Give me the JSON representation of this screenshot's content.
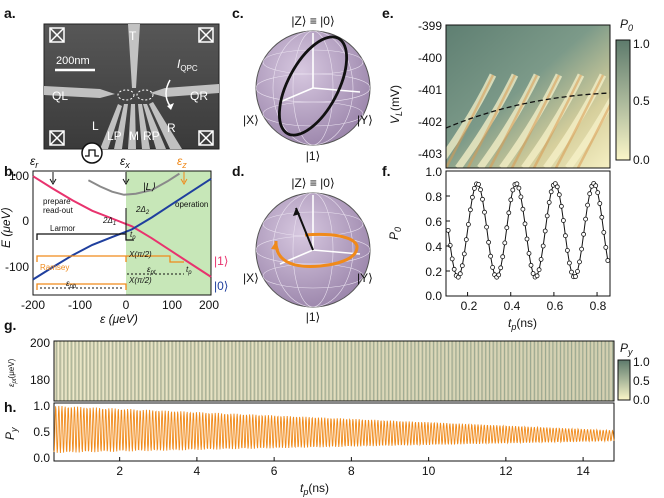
{
  "panels": {
    "a": "a.",
    "b": "b.",
    "c": "c.",
    "d": "d.",
    "e": "e.",
    "f": "f.",
    "g": "g.",
    "h": "h."
  },
  "colors": {
    "red": "#e8336e",
    "blue": "#1f3f9e",
    "orange": "#f08a1a",
    "green": "#c7e7b8",
    "sphere": "#b9a5c7",
    "gray": "#8a8a8a"
  },
  "panel_a": {
    "scale_bar": "200nm",
    "gates": [
      "T",
      "QL",
      "QR",
      "L",
      "LP",
      "M",
      "RP",
      "R"
    ],
    "current_label": "I",
    "current_sub": "QPC"
  },
  "panel_b": {
    "eps_r": "ε",
    "eps_r_sub": "r",
    "eps_x": "ε",
    "eps_x_sub": "x",
    "eps_z": "ε",
    "eps_z_sub": "z",
    "ket_L": "|L⟩",
    "prepare": "prepare",
    "readout": "read-out",
    "operation": "operation",
    "two_delta1": "2Δ",
    "two_delta1_sub": "1",
    "two_delta2": "2Δ",
    "two_delta2_sub": "2",
    "larmor": "Larmor",
    "ramsey": "Ramsey",
    "tp": "t",
    "tp_sub": "p",
    "xpi2_a": "X(π/2)",
    "xpi2_b": "X(π/2)",
    "eps_pt": "ε",
    "eps_pt_sub": "pt",
    "eps_pb": "ε",
    "eps_pb_sub": "pb",
    "ket1": "|1⟩",
    "ket0": "|0⟩",
    "ylabel": "E (μeV)",
    "xlabel": "ε (μeV)"
  },
  "chart_data": [
    {
      "panel": "b",
      "type": "line",
      "xlabel": "ε (μeV)",
      "ylabel": "E (μeV)",
      "xlim": [
        -200,
        250
      ],
      "ylim": [
        -130,
        110
      ],
      "xticks": [
        -200,
        -100,
        0,
        100,
        200
      ],
      "yticks": [
        -100,
        0,
        100
      ],
      "series": [
        {
          "name": "|1⟩",
          "x": [
            -200,
            -150,
            -100,
            -50,
            0,
            50,
            100,
            150,
            200,
            250
          ],
          "y": [
            100,
            76,
            53,
            33,
            18,
            3,
            -20,
            -45,
            -70,
            -95
          ]
        },
        {
          "name": "|0⟩",
          "x": [
            -200,
            -150,
            -100,
            -50,
            0,
            50,
            100,
            150,
            200,
            250
          ],
          "y": [
            -100,
            -76,
            -53,
            -33,
            -18,
            -3,
            20,
            45,
            70,
            95
          ]
        },
        {
          "name": "|L⟩",
          "x": [
            -60,
            -30,
            0,
            30,
            60,
            100,
            140,
            170
          ],
          "y": [
            92,
            80,
            70,
            64,
            66,
            73,
            90,
            105
          ]
        }
      ]
    },
    {
      "panel": "e",
      "type": "heatmap",
      "ylabel": "V_L (mV)",
      "colorbar_label": "P_0",
      "ylim": [
        -403.4,
        -399
      ],
      "yticks": [
        -399,
        -400,
        -401,
        -402,
        -403
      ],
      "colorbar_ticks": [
        0.0,
        0.5,
        1.0
      ],
      "colorbar_range": [
        0.0,
        1.0
      ]
    },
    {
      "panel": "f",
      "type": "line",
      "xlabel": "t_p (ns)",
      "ylabel": "P_0",
      "xlim": [
        0.1,
        0.86
      ],
      "ylim": [
        0.0,
        1.0
      ],
      "xticks": [
        0.2,
        0.4,
        0.6,
        0.8
      ],
      "yticks": [
        0.0,
        0.2,
        0.4,
        0.6,
        0.8,
        1.0
      ],
      "period_ns": 0.18,
      "center_ns": 0.245,
      "series": [
        {
          "name": "P0",
          "points": 80,
          "min": 0.15,
          "max": 0.9
        }
      ]
    },
    {
      "panel": "g",
      "type": "heatmap",
      "ylabel": "ε_pt (μeV)",
      "colorbar_label": "P_y",
      "ylim": [
        168,
        200
      ],
      "yticks": [
        180,
        200
      ],
      "xlim": [
        0.3,
        14.8
      ],
      "colorbar_ticks": [
        0.0,
        0.5,
        1.0
      ],
      "colorbar_range": [
        0.0,
        1.0
      ]
    },
    {
      "panel": "h",
      "type": "line",
      "xlabel": "t_p (ns)",
      "ylabel": "P_y",
      "xlim": [
        0.3,
        14.8
      ],
      "ylim": [
        -0.05,
        1.05
      ],
      "xticks": [
        2,
        4,
        6,
        8,
        10,
        12,
        14
      ],
      "yticks": [
        0.0,
        0.5,
        1.0
      ],
      "period_ns": 0.081,
      "mean": 0.55,
      "amp_start": 0.45,
      "amp_end": 0.1
    }
  ],
  "panel_c": {
    "top": "|Z⟩ ≡ |0⟩",
    "bottom": "|1⟩",
    "left": "|X⟩",
    "right": "|Y⟩"
  },
  "panel_d": {
    "top": "|Z⟩ ≡ |0⟩",
    "bottom": "|1⟩",
    "left": "|X⟩",
    "right": "|Y⟩"
  },
  "labels": {
    "e_ylabel": "V",
    "e_ylabel_sub": "L",
    "e_ylabel_unit": "(mV)",
    "e_cbar": "P",
    "e_cbar_sub": "0",
    "f_ylabel": "P",
    "f_ylabel_sub": "0",
    "f_xlabel": "t",
    "f_xlabel_sub": "p",
    "f_xlabel_unit": "(ns)",
    "g_ylabel": "ε",
    "g_ylabel_sub": "pt",
    "g_ylabel_unit": "(μeV)",
    "g_cbar": "P",
    "g_cbar_sub": "y",
    "h_ylabel": "P",
    "h_ylabel_sub": "y",
    "h_xlabel": "t",
    "h_xlabel_sub": "p",
    "h_xlabel_unit": "(ns)"
  },
  "ticks": {
    "b_x": [
      "-200",
      "-100",
      "0",
      "100",
      "200"
    ],
    "b_y": [
      "100",
      "0",
      "-100"
    ],
    "e_y": [
      "-399",
      "-400",
      "-401",
      "-402",
      "-403"
    ],
    "e_cb": [
      "1.0",
      "0.5",
      "0.0"
    ],
    "f_x": [
      "0.2",
      "0.4",
      "0.6",
      "0.8"
    ],
    "f_y": [
      "1.0",
      "0.8",
      "0.6",
      "0.4",
      "0.2",
      "0.0"
    ],
    "g_y": [
      "200",
      "180"
    ],
    "g_cb": [
      "1.0",
      "0.5",
      "0.0"
    ],
    "h_y": [
      "1.0",
      "0.5",
      "0.0"
    ],
    "h_x": [
      "2",
      "4",
      "6",
      "8",
      "10",
      "12",
      "14"
    ]
  }
}
